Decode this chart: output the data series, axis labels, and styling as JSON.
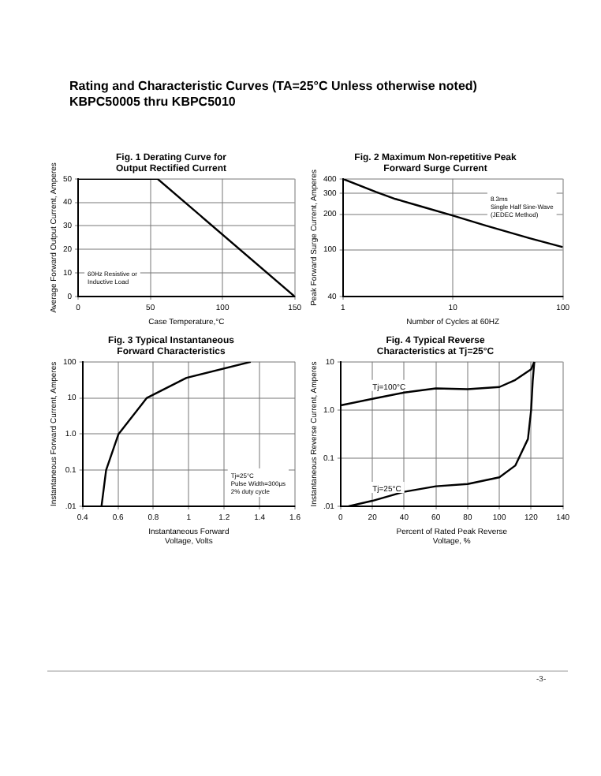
{
  "chart_data": [
    {
      "type": "other",
      "title": "Rating and Characteristic Curves (TA=25°C Unless otherwise noted)",
      "subtitle": "KBPC50005 thru KBPC5010",
      "annotations": [
        "-3-"
      ]
    },
    {
      "type": "line",
      "title": "Fig. 1 Derating Curve for\nOutput Rectified Current",
      "xlabel": "Case Temperature,°C",
      "ylabel": "Average Forward Output Current, Amperes",
      "x": [
        0,
        55,
        150
      ],
      "series": [
        {
          "color": "#000000",
          "values": [
            50,
            50,
            0
          ]
        }
      ],
      "xlim": [
        0,
        150
      ],
      "xticks": [
        0,
        50,
        100,
        150
      ],
      "ylim": [
        0,
        50
      ],
      "yticks": [
        0,
        10,
        20,
        30,
        40,
        50
      ],
      "grid": true,
      "legend": false,
      "marker": "none",
      "annotations": [
        "60Hz Resistive or\nInductive Load"
      ]
    },
    {
      "type": "line",
      "title": "Fig. 2 Maximum Non-repetitive Peak\nForward Surge Current",
      "xlabel": "Number of Cycles at 60HZ",
      "ylabel": "Peak Forward Surge Current, Amperes",
      "x": [
        1,
        2,
        3,
        5,
        10,
        20,
        50,
        100
      ],
      "series": [
        {
          "color": "#000000",
          "values": [
            400,
            310,
            270,
            235,
            195,
            160,
            125,
            105
          ]
        }
      ],
      "log": "xy",
      "xlim": [
        1,
        100
      ],
      "xticks": [
        1,
        10,
        100
      ],
      "ylim": [
        40,
        400
      ],
      "yticks": [
        40,
        100,
        200,
        300,
        400
      ],
      "grid": true,
      "legend": false,
      "marker": "none",
      "annotations": [
        "8.3ms\nSingle Half Sine-Wave\n(JEDEC Method)"
      ]
    },
    {
      "type": "line",
      "title": "Fig. 3 Typical Instantaneous\nForward Characteristics",
      "xlabel": "Instantaneous Forward\nVoltage, Volts",
      "ylabel": "Instantaneous Forward Current, Amperes",
      "x": [
        0.507,
        0.533,
        0.603,
        0.763,
        0.987,
        1.35
      ],
      "series": [
        {
          "color": "#000000",
          "values": [
            0.01,
            0.1,
            1,
            10,
            36,
            100
          ]
        }
      ],
      "log": "y",
      "xlim": [
        0.4,
        1.6
      ],
      "xticks": [
        0.4,
        0.6,
        0.8,
        1.0,
        1.2,
        1.4,
        1.6
      ],
      "ylim": [
        0.01,
        100
      ],
      "yticks": [
        {
          "value": 0.01,
          "label": ".01"
        },
        {
          "value": 0.1,
          "label": "0.1"
        },
        {
          "value": 1,
          "label": "1.0"
        },
        10,
        100
      ],
      "grid": true,
      "legend": false,
      "marker": "none",
      "annotations": [
        "Tj=25°C\nPulse Width=300μs\n2% duty cycle"
      ]
    },
    {
      "type": "line",
      "title": "Fig. 4 Typical Reverse\nCharacteristics at Tj=25°C",
      "xlabel": "Percent of Rated Peak Reverse\nVoltage, %",
      "ylabel": "Instantaneous Reverse Current, Amperes",
      "series": [
        {
          "name": "Tj=100°C",
          "color": "#000000",
          "x": [
            0,
            20,
            40,
            60,
            80,
            100,
            110,
            120,
            122
          ],
          "values": [
            1.25,
            1.7,
            2.3,
            2.8,
            2.7,
            3.0,
            4.2,
            7,
            10
          ]
        },
        {
          "name": "Tj=25°C",
          "color": "#000000",
          "x": [
            5,
            20,
            40,
            60,
            80,
            100,
            110,
            118,
            120,
            121,
            122
          ],
          "values": [
            0.01,
            0.013,
            0.02,
            0.026,
            0.029,
            0.04,
            0.07,
            0.25,
            1.0,
            4,
            10
          ]
        }
      ],
      "log": "y",
      "xlim": [
        0,
        140
      ],
      "xticks": [
        0,
        20,
        40,
        60,
        80,
        100,
        120,
        140
      ],
      "ylim": [
        0.01,
        10
      ],
      "yticks": [
        {
          "value": 0.01,
          "label": ".01"
        },
        {
          "value": 0.1,
          "label": "0.1"
        },
        {
          "value": 1,
          "label": "1.0"
        },
        10
      ],
      "grid": true,
      "legend": false,
      "marker": "none"
    }
  ]
}
